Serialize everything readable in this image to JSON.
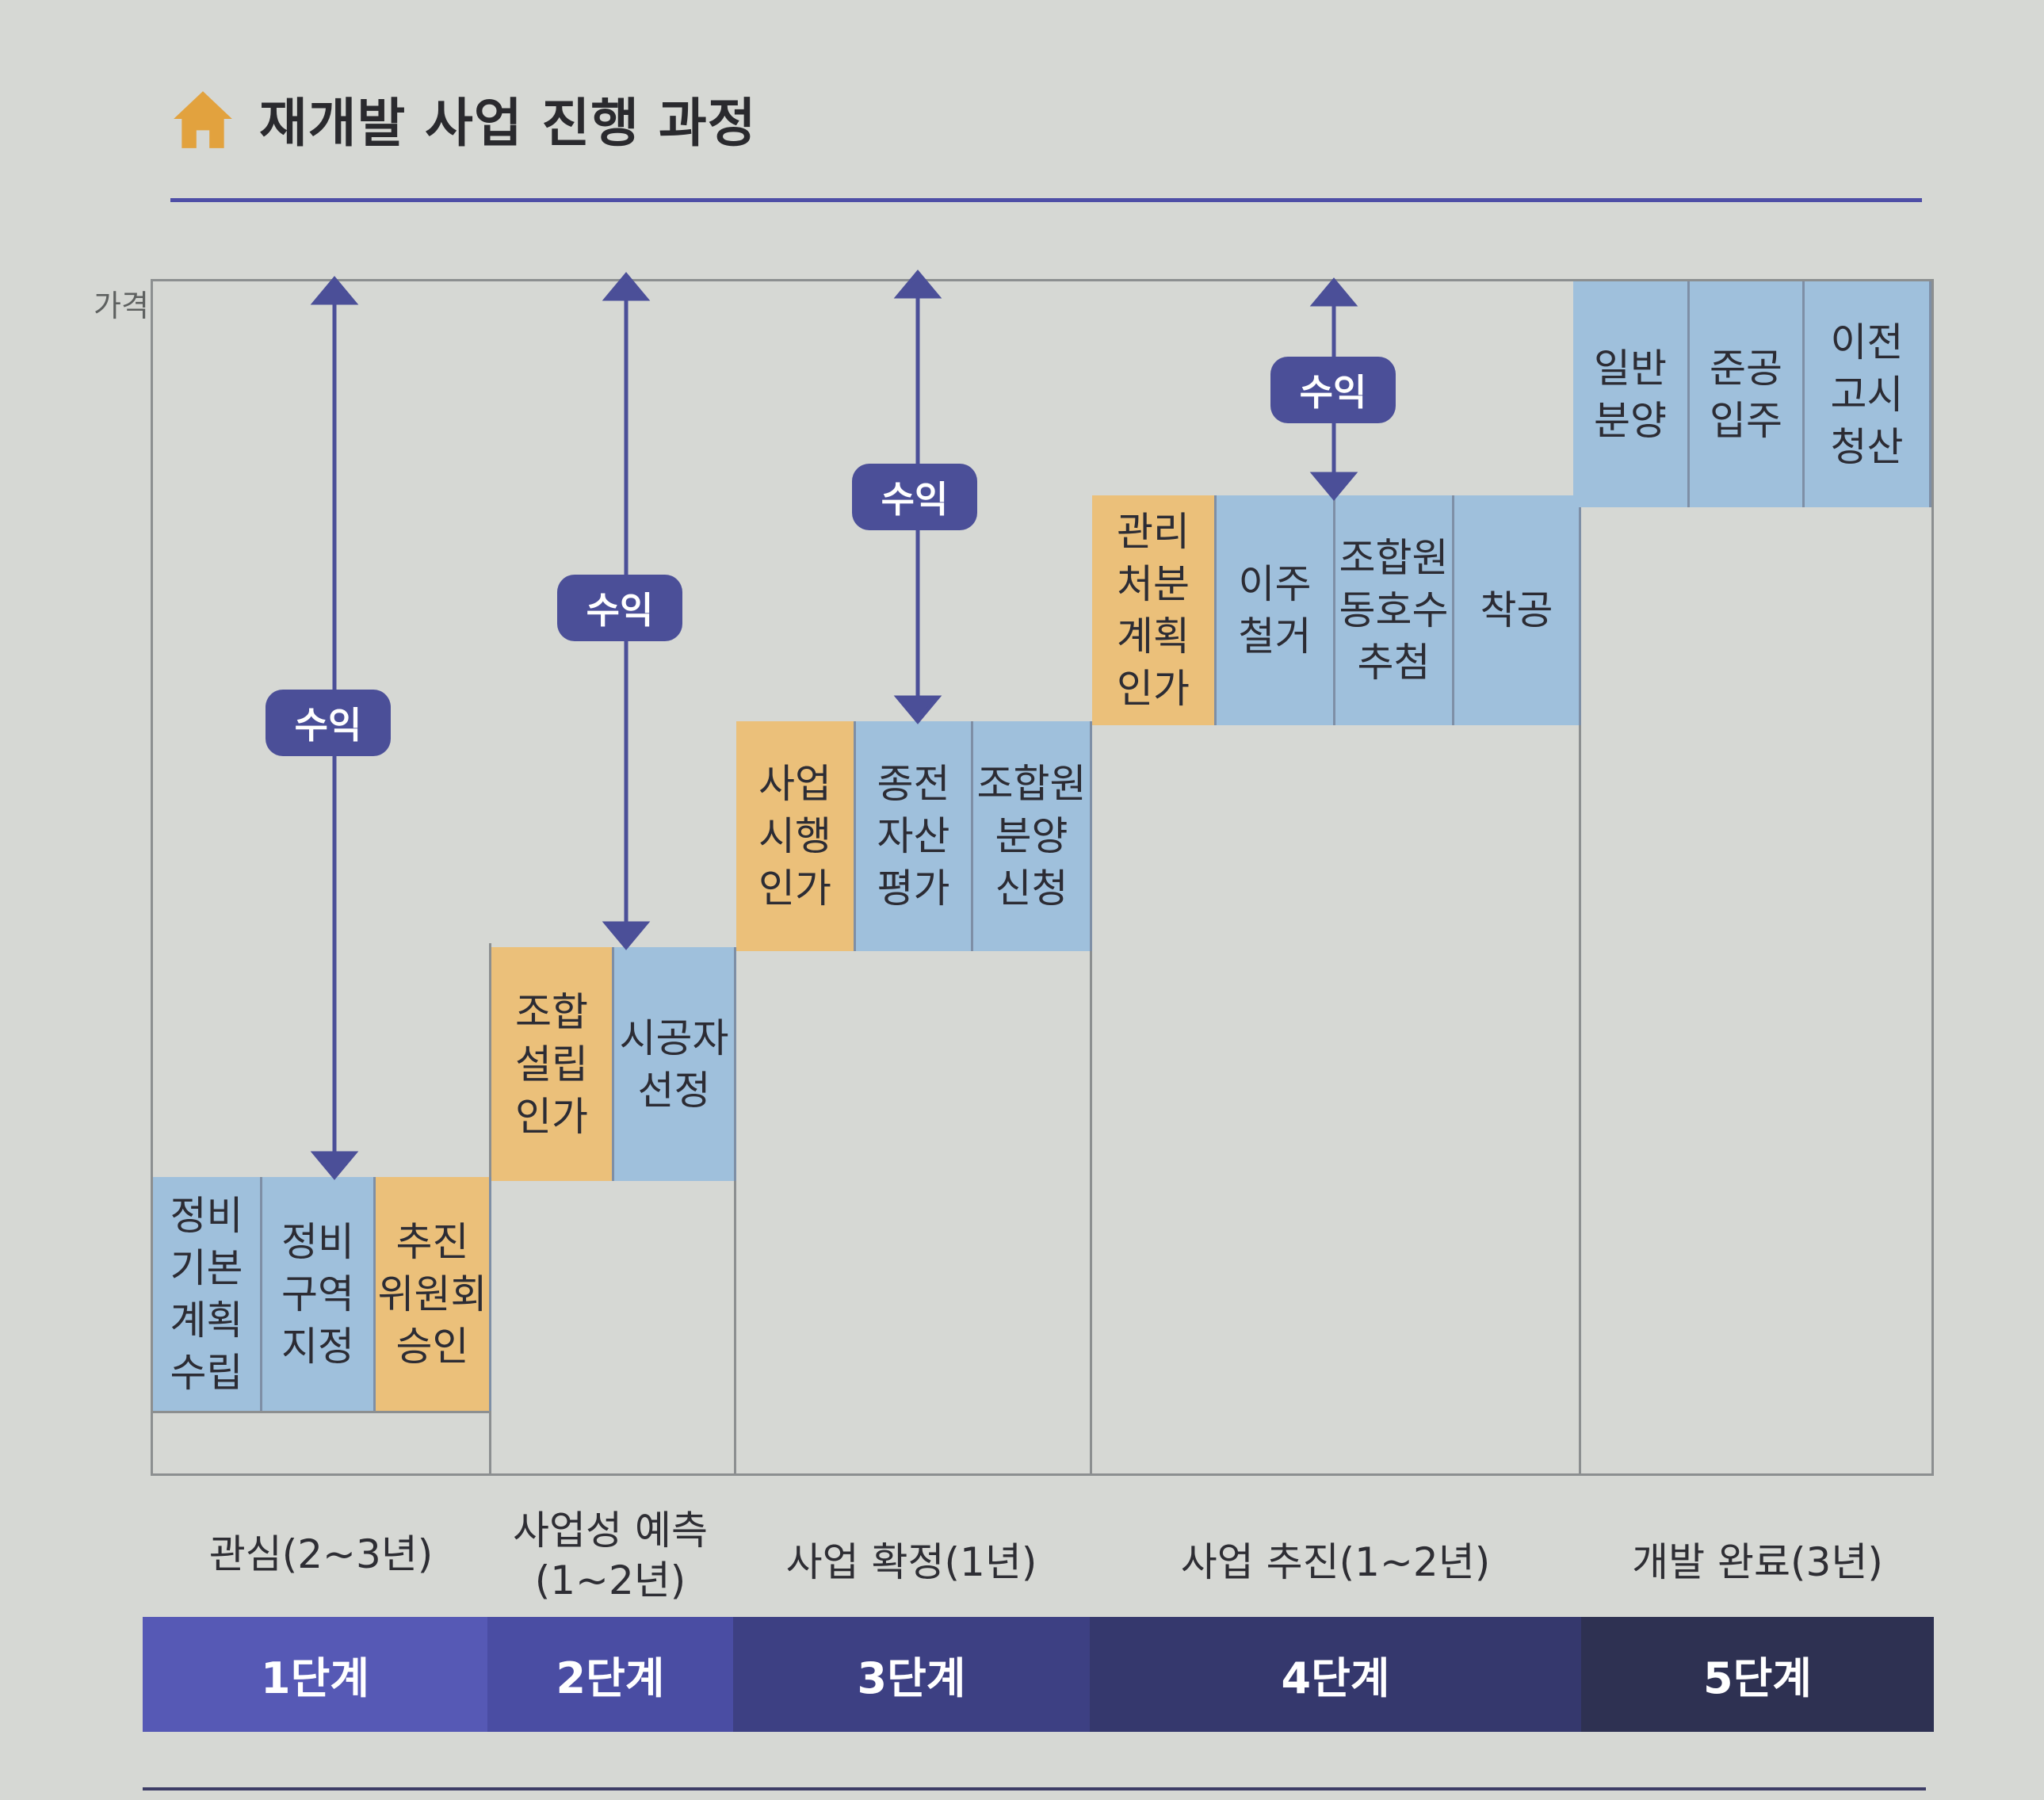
{
  "title": "재개발 사업 진행 과정",
  "y_axis_label": "가격",
  "profit_label": "수익",
  "steps": [
    {
      "id": "s1",
      "label": "정비\n기본\n계획\n수립",
      "color": "blue"
    },
    {
      "id": "s2",
      "label": "정비\n구역\n지정",
      "color": "blue"
    },
    {
      "id": "s3",
      "label": "추진\n위원회\n승인",
      "color": "yellow"
    },
    {
      "id": "s4",
      "label": "조합\n설립\n인가",
      "color": "yellow"
    },
    {
      "id": "s5",
      "label": "시공자\n선정",
      "color": "blue"
    },
    {
      "id": "s6",
      "label": "사업\n시행\n인가",
      "color": "yellow"
    },
    {
      "id": "s7",
      "label": "종전\n자산\n평가",
      "color": "blue"
    },
    {
      "id": "s8",
      "label": "조합원\n분양\n신청",
      "color": "blue"
    },
    {
      "id": "s9",
      "label": "관리\n처분\n계획\n인가",
      "color": "yellow"
    },
    {
      "id": "s10",
      "label": "이주\n철거",
      "color": "blue"
    },
    {
      "id": "s11",
      "label": "조합원\n동호수\n추첨",
      "color": "blue"
    },
    {
      "id": "s12",
      "label": "착공",
      "color": "blue"
    },
    {
      "id": "s13",
      "label": "일반\n분양",
      "color": "blue"
    },
    {
      "id": "s14",
      "label": "준공\n입주",
      "color": "blue"
    },
    {
      "id": "s15",
      "label": "이전\n고시\n청산",
      "color": "blue"
    }
  ],
  "phases": [
    {
      "label": "관심(2~3년)",
      "stage": "1단계",
      "bar_color": "#5659b5"
    },
    {
      "label": "사업성 예측\n(1~2년)",
      "stage": "2단계",
      "bar_color": "#4a4da3"
    },
    {
      "label": "사업 확정(1년)",
      "stage": "3단계",
      "bar_color": "#3d4083"
    },
    {
      "label": "사업 추진(1~2년)",
      "stage": "4단계",
      "bar_color": "#35386d"
    },
    {
      "label": "개발 완료(3년)",
      "stage": "5단계",
      "bar_color": "#2e3152"
    }
  ],
  "colors": {
    "blue": "#9fc0dc",
    "yellow": "#ebc07a",
    "accent": "#4b4f98",
    "rule": "#4e4ea6",
    "icon": "#e2a23e"
  }
}
